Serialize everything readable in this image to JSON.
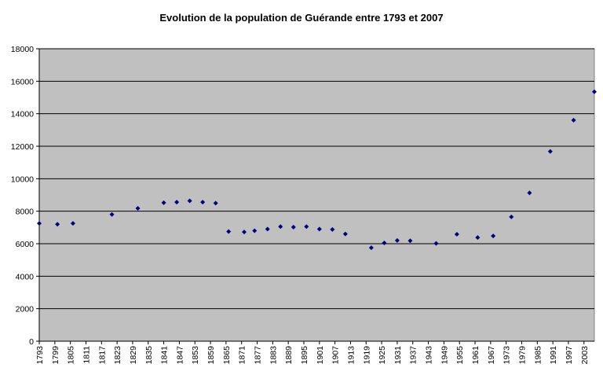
{
  "chart_data": {
    "type": "scatter",
    "title": "Evolution de la population de Guérande entre 1793 et 2007",
    "xlabel": "",
    "ylabel": "",
    "xlim": [
      1793,
      2007
    ],
    "ylim": [
      0,
      18000
    ],
    "grid": true,
    "legend": "none",
    "x_ticks": [
      "1793",
      "1799",
      "1805",
      "1811",
      "1817",
      "1823",
      "1829",
      "1835",
      "1841",
      "1847",
      "1853",
      "1859",
      "1865",
      "1871",
      "1877",
      "1883",
      "1889",
      "1895",
      "1901",
      "1907",
      "1913",
      "1919",
      "1925",
      "1931",
      "1937",
      "1943",
      "1949",
      "1955",
      "1961",
      "1967",
      "1973",
      "1979",
      "1985",
      "1991",
      "1997",
      "2003"
    ],
    "y_ticks": [
      "0",
      "2000",
      "4000",
      "6000",
      "8000",
      "10000",
      "12000",
      "14000",
      "16000",
      "18000"
    ],
    "x": [
      1793,
      1800,
      1806,
      1821,
      1831,
      1841,
      1846,
      1851,
      1856,
      1861,
      1866,
      1872,
      1876,
      1881,
      1886,
      1891,
      1896,
      1901,
      1906,
      1911,
      1921,
      1926,
      1931,
      1936,
      1946,
      1954,
      1962,
      1968,
      1975,
      1982,
      1990,
      1999,
      2007
    ],
    "y": [
      7250,
      7200,
      7250,
      7800,
      8180,
      8520,
      8560,
      8640,
      8560,
      8500,
      6750,
      6720,
      6800,
      6900,
      7050,
      7020,
      7050,
      6900,
      6880,
      6600,
      5750,
      6050,
      6200,
      6180,
      6020,
      6580,
      6380,
      6480,
      7650,
      9130,
      11680,
      13600,
      15350
    ],
    "colors": {
      "plot_bg": "#c0c0c0",
      "gridline": "#000000",
      "marker": "#000080"
    }
  }
}
